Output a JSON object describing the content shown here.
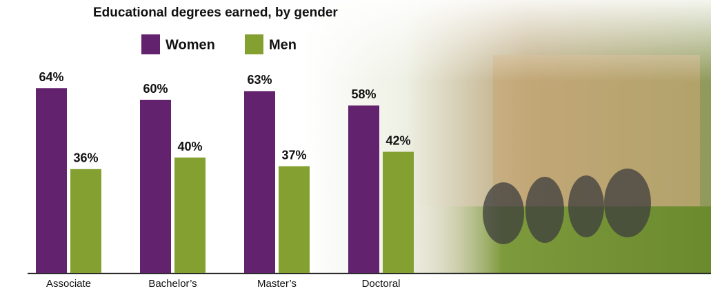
{
  "chart_data": {
    "type": "bar",
    "title": "Educational degrees earned, by gender",
    "categories": [
      "Associate",
      "Bachelor’s",
      "Master’s",
      "Doctoral"
    ],
    "series": [
      {
        "name": "Women",
        "color": "#63226e",
        "values": [
          64,
          60,
          63,
          58
        ],
        "value_labels": [
          "64%",
          "60%",
          "63%",
          "58%"
        ]
      },
      {
        "name": "Men",
        "color": "#84a031",
        "values": [
          36,
          40,
          37,
          42
        ],
        "value_labels": [
          "36%",
          "40%",
          "37%",
          "42%"
        ]
      }
    ]
  }
}
